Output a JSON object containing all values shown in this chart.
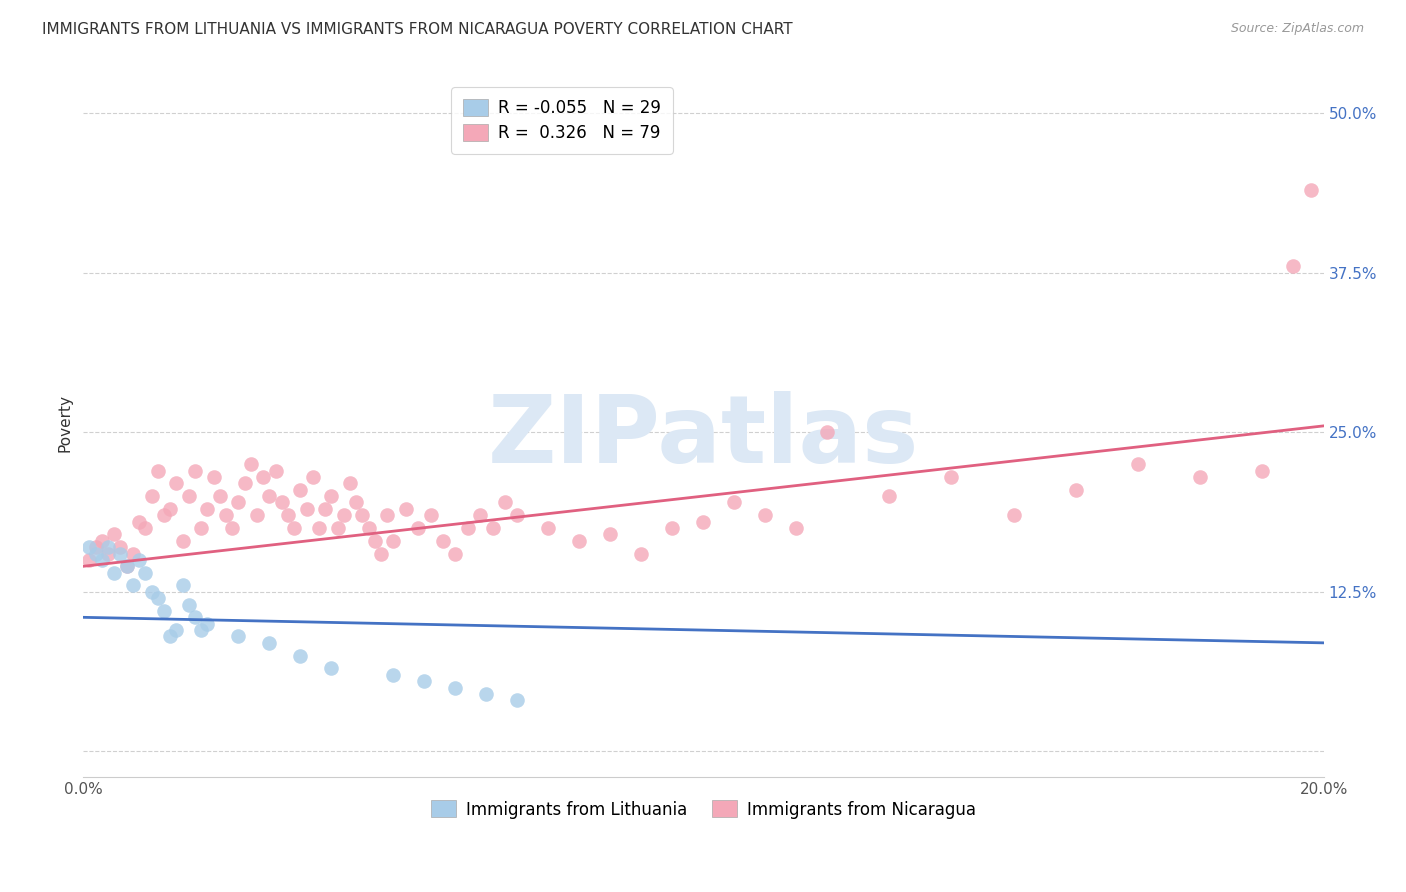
{
  "title": "IMMIGRANTS FROM LITHUANIA VS IMMIGRANTS FROM NICARAGUA POVERTY CORRELATION CHART",
  "source": "Source: ZipAtlas.com",
  "ylabel": "Poverty",
  "y_ticks": [
    0.0,
    0.125,
    0.25,
    0.375,
    0.5
  ],
  "y_tick_labels": [
    "",
    "12.5%",
    "25.0%",
    "37.5%",
    "50.0%"
  ],
  "xlim": [
    0.0,
    0.2
  ],
  "ylim": [
    -0.02,
    0.535
  ],
  "lithuania_R": -0.055,
  "lithuania_N": 29,
  "nicaragua_R": 0.326,
  "nicaragua_N": 79,
  "lithuania_color": "#a8cce8",
  "nicaragua_color": "#f4a8b8",
  "lithuania_line_color": "#4472c4",
  "nicaragua_line_color": "#e06080",
  "watermark": "ZIPatlas",
  "watermark_color": "#dce8f5",
  "lithuania_x": [
    0.001,
    0.002,
    0.003,
    0.004,
    0.005,
    0.006,
    0.007,
    0.008,
    0.009,
    0.01,
    0.011,
    0.012,
    0.013,
    0.014,
    0.015,
    0.016,
    0.017,
    0.018,
    0.019,
    0.02,
    0.025,
    0.03,
    0.035,
    0.04,
    0.05,
    0.055,
    0.06,
    0.065,
    0.07
  ],
  "lithuania_y": [
    0.16,
    0.155,
    0.15,
    0.16,
    0.14,
    0.155,
    0.145,
    0.13,
    0.15,
    0.14,
    0.125,
    0.12,
    0.11,
    0.09,
    0.095,
    0.13,
    0.115,
    0.105,
    0.095,
    0.1,
    0.09,
    0.085,
    0.075,
    0.065,
    0.06,
    0.055,
    0.05,
    0.045,
    0.04
  ],
  "nicaragua_x": [
    0.001,
    0.002,
    0.003,
    0.004,
    0.005,
    0.006,
    0.007,
    0.008,
    0.009,
    0.01,
    0.011,
    0.012,
    0.013,
    0.014,
    0.015,
    0.016,
    0.017,
    0.018,
    0.019,
    0.02,
    0.021,
    0.022,
    0.023,
    0.024,
    0.025,
    0.026,
    0.027,
    0.028,
    0.029,
    0.03,
    0.031,
    0.032,
    0.033,
    0.034,
    0.035,
    0.036,
    0.037,
    0.038,
    0.039,
    0.04,
    0.041,
    0.042,
    0.043,
    0.044,
    0.045,
    0.046,
    0.047,
    0.048,
    0.049,
    0.05,
    0.052,
    0.054,
    0.056,
    0.058,
    0.06,
    0.062,
    0.064,
    0.066,
    0.068,
    0.07,
    0.075,
    0.08,
    0.085,
    0.09,
    0.095,
    0.1,
    0.105,
    0.11,
    0.115,
    0.12,
    0.13,
    0.14,
    0.15,
    0.16,
    0.17,
    0.18,
    0.19,
    0.195,
    0.198
  ],
  "nicaragua_y": [
    0.15,
    0.16,
    0.165,
    0.155,
    0.17,
    0.16,
    0.145,
    0.155,
    0.18,
    0.175,
    0.2,
    0.22,
    0.185,
    0.19,
    0.21,
    0.165,
    0.2,
    0.22,
    0.175,
    0.19,
    0.215,
    0.2,
    0.185,
    0.175,
    0.195,
    0.21,
    0.225,
    0.185,
    0.215,
    0.2,
    0.22,
    0.195,
    0.185,
    0.175,
    0.205,
    0.19,
    0.215,
    0.175,
    0.19,
    0.2,
    0.175,
    0.185,
    0.21,
    0.195,
    0.185,
    0.175,
    0.165,
    0.155,
    0.185,
    0.165,
    0.19,
    0.175,
    0.185,
    0.165,
    0.155,
    0.175,
    0.185,
    0.175,
    0.195,
    0.185,
    0.175,
    0.165,
    0.17,
    0.155,
    0.175,
    0.18,
    0.195,
    0.185,
    0.175,
    0.25,
    0.2,
    0.215,
    0.185,
    0.205,
    0.225,
    0.215,
    0.22,
    0.38,
    0.44
  ],
  "background_color": "#ffffff",
  "grid_color": "#d0d0d0",
  "title_fontsize": 11,
  "axis_label_fontsize": 11,
  "tick_fontsize": 11,
  "legend_fontsize": 12,
  "watermark_fontsize": 68
}
